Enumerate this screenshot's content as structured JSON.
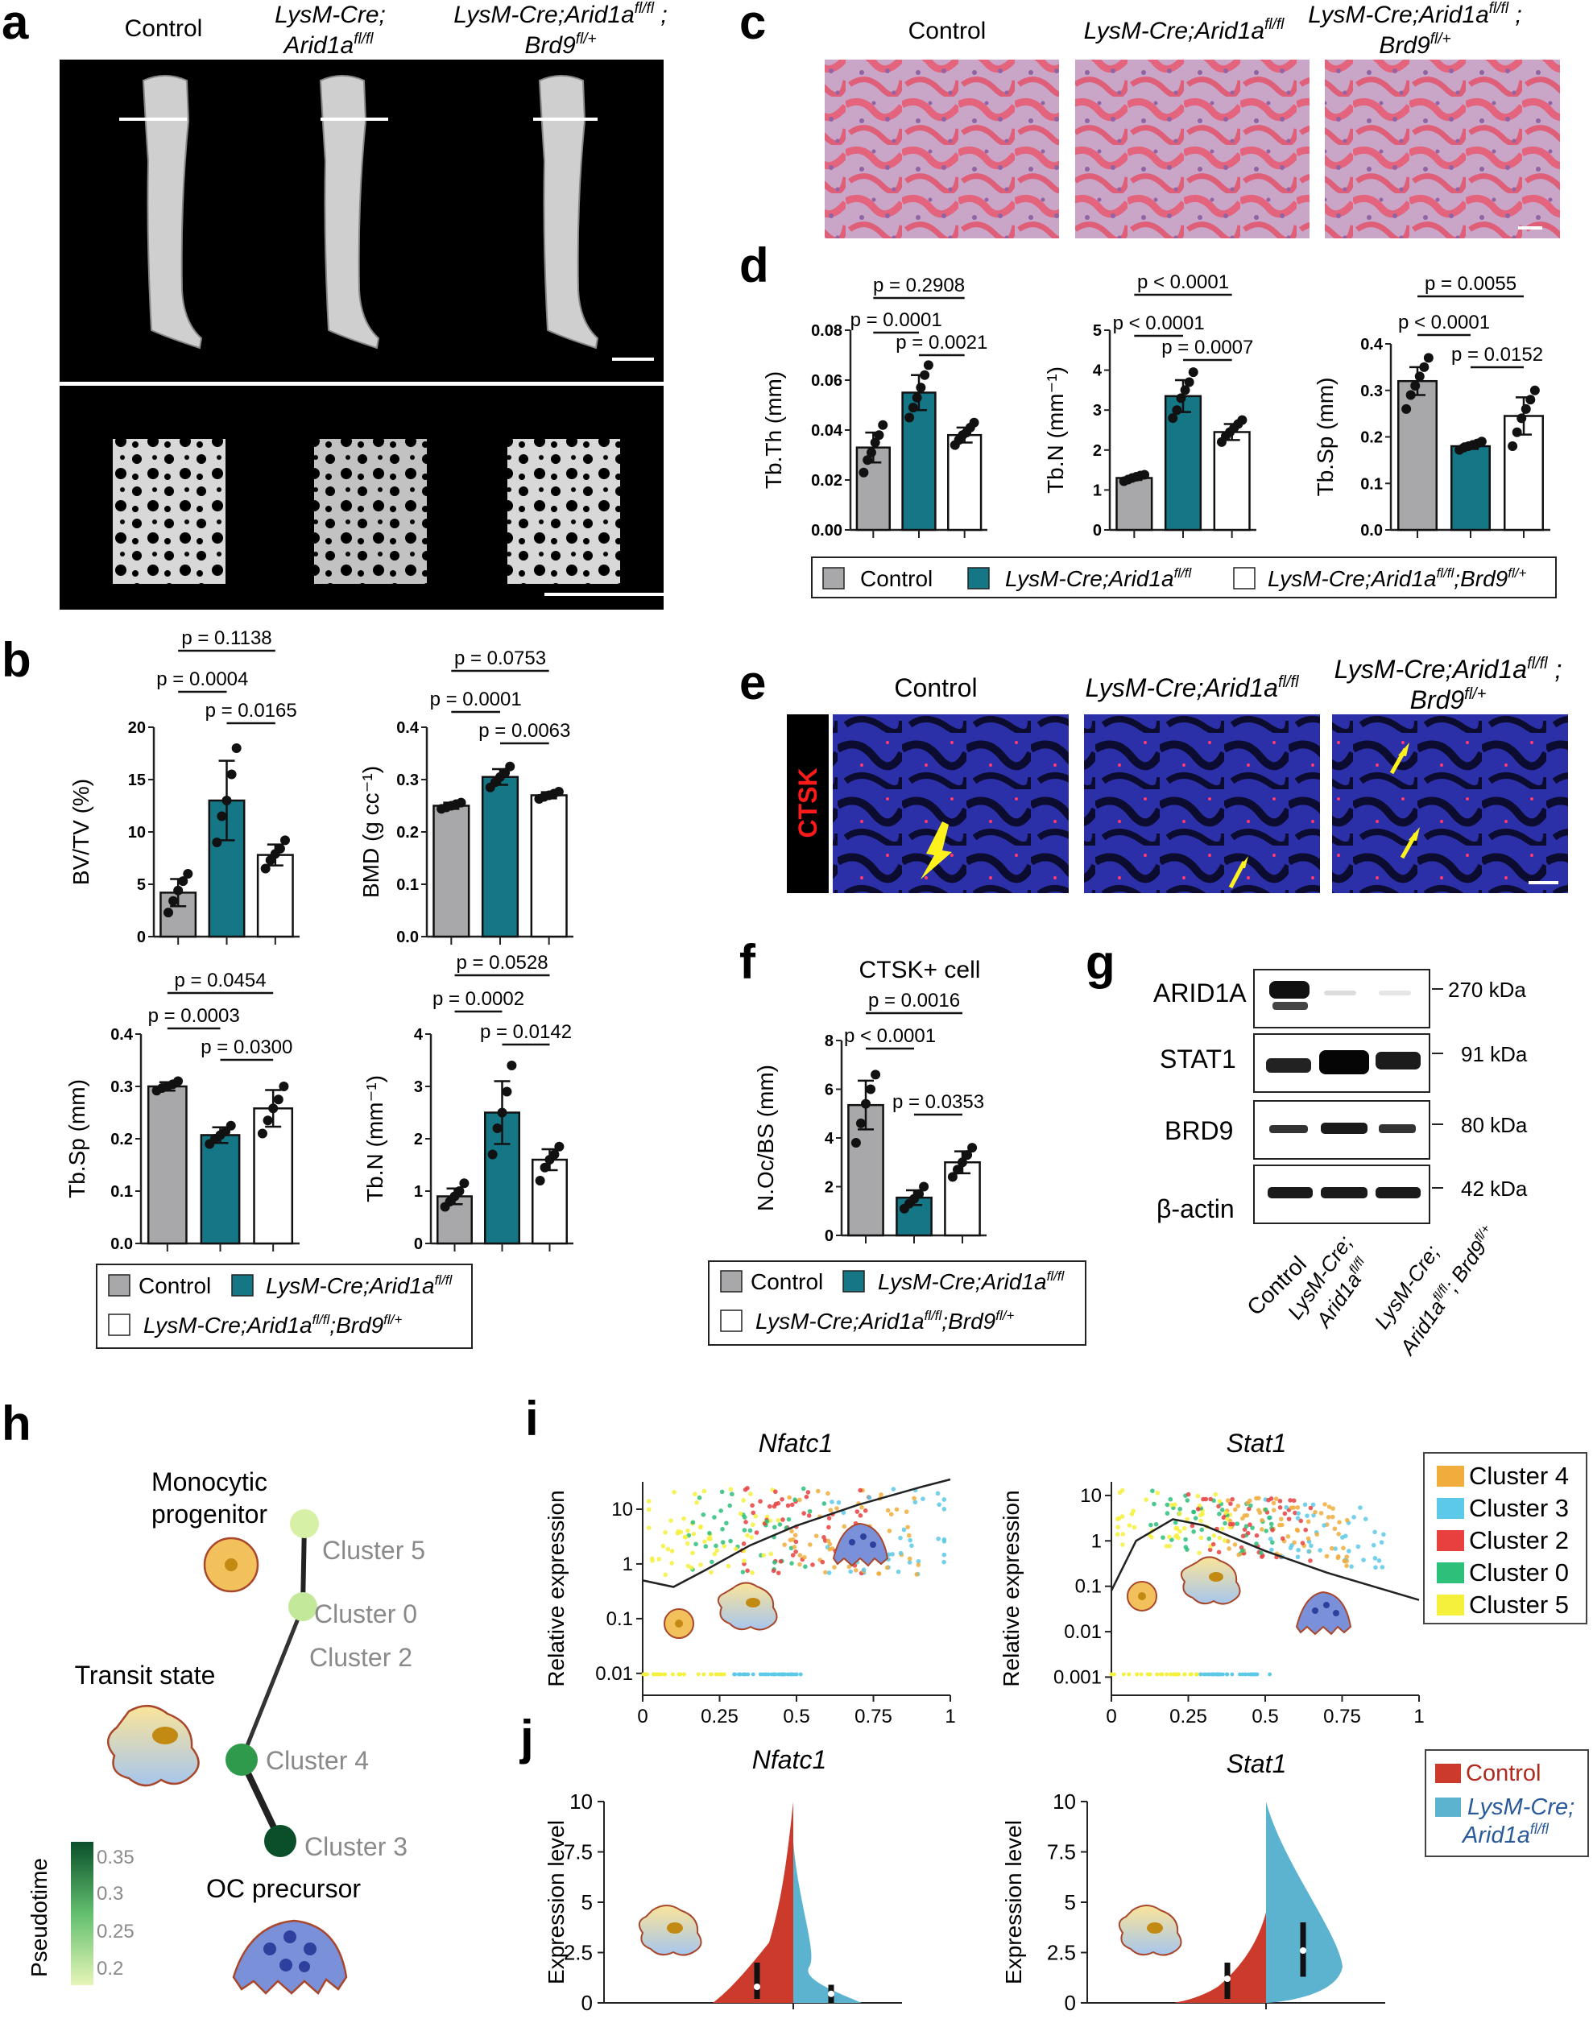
{
  "panel_letters": {
    "a": "a",
    "b": "b",
    "c": "c",
    "d": "d",
    "e": "e",
    "f": "f",
    "g": "g",
    "h": "h",
    "i": "i",
    "j": "j"
  },
  "genotype_labels": {
    "control": "Control",
    "lysm_line1": "LysM-Cre;",
    "lysm_line2": "Arid1a",
    "lysm_sup": "fl/fl",
    "dko_line1": "LysM-Cre;Arid1a",
    "dko_sup1": "fl/fl",
    "dko_semicolon": " ;",
    "dko_line2": "Brd9",
    "dko_sup2": "fl/+",
    "lysm_single": "LysM-Cre;Arid1a"
  },
  "legend": {
    "control": "Control",
    "lysm": "LysM-Cre;Arid1a",
    "lysm_sup": "fl/fl",
    "dko": "LysM-Cre;Arid1a",
    "dko_mid": ";Brd9",
    "dko_sup1": "fl/fl",
    "dko_sup2": "fl/+"
  },
  "colors": {
    "control": "#a8a8ab",
    "lysm": "#157686",
    "dko": "#ffffff",
    "nfatc1_line": "#222222",
    "pseudotime_low": "#e6f5b8",
    "pseudotime_high": "#0a4f2a",
    "violin_control": "#cc3a2c",
    "violin_lysm": "#5cb3cf"
  },
  "panel_e_stain": "CTSK",
  "chart_data": [
    {
      "id": "b1",
      "type": "bar",
      "ylabel": "BV/TV  (%)",
      "ylim": [
        0,
        20
      ],
      "yticks": [
        "0",
        "5",
        "10",
        "15",
        "20"
      ],
      "categories": [
        "Control",
        "LysM-Cre;Arid1a fl/fl",
        "LysM-Cre;Arid1a fl/fl;Brd9 fl/+"
      ],
      "values": [
        4.2,
        13.0,
        7.8
      ],
      "errors": [
        1.3,
        3.8,
        1.0
      ],
      "points": [
        [
          2.3,
          3.4,
          4.4,
          5.3,
          6.0
        ],
        [
          9.0,
          11.5,
          13.0,
          15.5,
          18.0
        ],
        [
          6.5,
          7.3,
          7.9,
          8.4,
          9.2
        ]
      ],
      "pvalues": [
        {
          "label": "p = 0.1138",
          "from": 0,
          "to": 2
        },
        {
          "label": "p = 0.0004",
          "from": 0,
          "to": 1
        },
        {
          "label": "p = 0.0165",
          "from": 1,
          "to": 2
        }
      ]
    },
    {
      "id": "b2",
      "type": "bar",
      "ylabel": "BMD (g cc⁻¹)",
      "ylim": [
        0,
        0.4
      ],
      "yticks": [
        "0.0",
        "0.1",
        "0.2",
        "0.3",
        "0.4"
      ],
      "categories": [
        "Control",
        "LysM-Cre;Arid1a fl/fl",
        "LysM-Cre;Arid1a fl/fl;Brd9 fl/+"
      ],
      "values": [
        0.25,
        0.305,
        0.27
      ],
      "errors": [
        0.006,
        0.015,
        0.006
      ],
      "points": [
        [
          0.244,
          0.247,
          0.25,
          0.253,
          0.256
        ],
        [
          0.285,
          0.295,
          0.305,
          0.313,
          0.325
        ],
        [
          0.263,
          0.267,
          0.27,
          0.273,
          0.277
        ]
      ],
      "pvalues": [
        {
          "label": "p = 0.0753",
          "from": 0,
          "to": 2
        },
        {
          "label": "p = 0.0001",
          "from": 0,
          "to": 1
        },
        {
          "label": "p = 0.0063",
          "from": 1,
          "to": 2
        }
      ]
    },
    {
      "id": "b3",
      "type": "bar",
      "ylabel": "Tb.Sp (mm)",
      "ylim": [
        0,
        0.4
      ],
      "yticks": [
        "0.0",
        "0.1",
        "0.2",
        "0.3",
        "0.4"
      ],
      "categories": [
        "Control",
        "LysM-Cre;Arid1a fl/fl",
        "LysM-Cre;Arid1a fl/fl;Brd9 fl/+"
      ],
      "values": [
        0.3,
        0.207,
        0.258
      ],
      "errors": [
        0.008,
        0.015,
        0.035
      ],
      "points": [
        [
          0.292,
          0.297,
          0.3,
          0.304,
          0.31
        ],
        [
          0.19,
          0.2,
          0.207,
          0.214,
          0.225
        ],
        [
          0.21,
          0.235,
          0.258,
          0.275,
          0.3
        ]
      ],
      "pvalues": [
        {
          "label": "p = 0.0454",
          "from": 0,
          "to": 2
        },
        {
          "label": "p = 0.0003",
          "from": 0,
          "to": 1
        },
        {
          "label": "p = 0.0300",
          "from": 1,
          "to": 2
        }
      ]
    },
    {
      "id": "b4",
      "type": "bar",
      "ylabel": "Tb.N (mm⁻¹)",
      "ylim": [
        0,
        4
      ],
      "yticks": [
        "0",
        "1",
        "2",
        "3",
        "4"
      ],
      "categories": [
        "Control",
        "LysM-Cre;Arid1a fl/fl",
        "LysM-Cre;Arid1a fl/fl;Brd9 fl/+"
      ],
      "values": [
        0.9,
        2.5,
        1.6
      ],
      "errors": [
        0.15,
        0.6,
        0.2
      ],
      "points": [
        [
          0.7,
          0.8,
          0.9,
          1.0,
          1.15
        ],
        [
          1.7,
          2.2,
          2.5,
          2.9,
          3.4
        ],
        [
          1.2,
          1.45,
          1.6,
          1.7,
          1.85
        ]
      ],
      "pvalues": [
        {
          "label": "p = 0.0528",
          "from": 0,
          "to": 2
        },
        {
          "label": "p = 0.0002",
          "from": 0,
          "to": 1
        },
        {
          "label": "p = 0.0142",
          "from": 1,
          "to": 2
        }
      ]
    },
    {
      "id": "d1",
      "type": "bar",
      "ylabel": "Tb.Th (mm)",
      "ylim": [
        0,
        0.08
      ],
      "yticks": [
        "0.00",
        "0.02",
        "0.04",
        "0.06",
        "0.08"
      ],
      "categories": [
        "Control",
        "LysM-Cre;Arid1a fl/fl",
        "LysM-Cre;Arid1a fl/fl;Brd9 fl/+"
      ],
      "values": [
        0.033,
        0.055,
        0.038
      ],
      "errors": [
        0.006,
        0.007,
        0.003
      ],
      "points": [
        [
          0.023,
          0.028,
          0.031,
          0.035,
          0.038,
          0.042
        ],
        [
          0.045,
          0.049,
          0.053,
          0.057,
          0.062,
          0.066
        ],
        [
          0.034,
          0.036,
          0.038,
          0.039,
          0.041,
          0.043
        ]
      ],
      "pvalues": [
        {
          "label": "p = 0.2908",
          "from": 0,
          "to": 2
        },
        {
          "label": "p = 0.0001",
          "from": 0,
          "to": 1
        },
        {
          "label": "p = 0.0021",
          "from": 1,
          "to": 2
        }
      ]
    },
    {
      "id": "d2",
      "type": "bar",
      "ylabel": "Tb.N (mm⁻¹)",
      "ylim": [
        0,
        5
      ],
      "yticks": [
        "0",
        "1",
        "2",
        "3",
        "4",
        "5"
      ],
      "categories": [
        "Control",
        "LysM-Cre;Arid1a fl/fl",
        "LysM-Cre;Arid1a fl/fl;Brd9 fl/+"
      ],
      "values": [
        1.3,
        3.35,
        2.45
      ],
      "errors": [
        0.05,
        0.4,
        0.2
      ],
      "points": [
        [
          1.22,
          1.26,
          1.3,
          1.33,
          1.36,
          1.38
        ],
        [
          2.8,
          3.0,
          3.3,
          3.5,
          3.7,
          3.95
        ],
        [
          2.2,
          2.35,
          2.45,
          2.55,
          2.65,
          2.75
        ]
      ],
      "pvalues": [
        {
          "label": "p < 0.0001",
          "from": 0,
          "to": 2
        },
        {
          "label": "p < 0.0001",
          "from": 0,
          "to": 1
        },
        {
          "label": "p = 0.0007",
          "from": 1,
          "to": 2
        }
      ]
    },
    {
      "id": "d3",
      "type": "bar",
      "ylabel": "Tb.Sp (mm)",
      "ylim": [
        0,
        0.4
      ],
      "yticks": [
        "0.0",
        "0.1",
        "0.2",
        "0.3",
        "0.4"
      ],
      "categories": [
        "Control",
        "LysM-Cre;Arid1a fl/fl",
        "LysM-Cre;Arid1a fl/fl;Brd9 fl/+"
      ],
      "values": [
        0.32,
        0.18,
        0.245
      ],
      "errors": [
        0.03,
        0.006,
        0.04
      ],
      "points": [
        [
          0.26,
          0.29,
          0.31,
          0.33,
          0.35,
          0.37
        ],
        [
          0.172,
          0.177,
          0.18,
          0.183,
          0.186,
          0.19
        ],
        [
          0.18,
          0.21,
          0.24,
          0.26,
          0.28,
          0.3
        ]
      ],
      "pvalues": [
        {
          "label": "p = 0.0055",
          "from": 0,
          "to": 2
        },
        {
          "label": "p < 0.0001",
          "from": 0,
          "to": 1
        },
        {
          "label": "p = 0.0152",
          "from": 1,
          "to": 2
        }
      ]
    },
    {
      "id": "f1",
      "type": "bar",
      "title": "CTSK+ cell",
      "ylabel": "N.Oc/BS (mm)",
      "ylim": [
        0,
        8
      ],
      "yticks": [
        "0",
        "2",
        "4",
        "6",
        "8"
      ],
      "categories": [
        "Control",
        "LysM-Cre;Arid1a fl/fl",
        "LysM-Cre;Arid1a fl/fl;Brd9 fl/+"
      ],
      "values": [
        5.35,
        1.55,
        3.0
      ],
      "errors": [
        1.0,
        0.3,
        0.45
      ],
      "points": [
        [
          3.8,
          4.6,
          5.4,
          6.0,
          6.6
        ],
        [
          1.1,
          1.3,
          1.5,
          1.7,
          2.0
        ],
        [
          2.4,
          2.7,
          3.0,
          3.3,
          3.6
        ]
      ],
      "pvalues": [
        {
          "label": "p = 0.0016",
          "from": 0,
          "to": 2
        },
        {
          "label": "p < 0.0001",
          "from": 0,
          "to": 1
        },
        {
          "label": "p = 0.0353",
          "from": 1,
          "to": 2
        }
      ]
    },
    {
      "id": "i1",
      "type": "scatter",
      "title": "Nfatc1",
      "ylabel": "Relative expression",
      "xlim": [
        0,
        1
      ],
      "yscale": "log",
      "xticks": [
        "0",
        "0.25",
        "0.5",
        "0.75",
        "1"
      ],
      "yticks": [
        "0.01",
        "0.1",
        "1",
        "10"
      ],
      "trend": [
        [
          0,
          0.5
        ],
        [
          0.1,
          0.38
        ],
        [
          0.2,
          0.75
        ],
        [
          0.35,
          2.2
        ],
        [
          0.5,
          5
        ],
        [
          0.7,
          12
        ],
        [
          0.9,
          25
        ],
        [
          1.0,
          35
        ]
      ]
    },
    {
      "id": "i2",
      "type": "scatter",
      "title": "Stat1",
      "ylabel": "Relative expression",
      "xlim": [
        0,
        1
      ],
      "yscale": "log",
      "xticks": [
        "0",
        "0.25",
        "0.5",
        "0.75",
        "1"
      ],
      "yticks": [
        "0.001",
        "0.01",
        "0.1",
        "1",
        "10"
      ],
      "trend": [
        [
          0,
          0.08
        ],
        [
          0.08,
          1.0
        ],
        [
          0.2,
          3.0
        ],
        [
          0.3,
          2.2
        ],
        [
          0.5,
          0.6
        ],
        [
          0.7,
          0.2
        ],
        [
          1.0,
          0.05
        ]
      ]
    },
    {
      "id": "j1",
      "type": "area",
      "title": "Nfatc1",
      "ylabel": "Expression level",
      "ylim": [
        0,
        10
      ],
      "yticks": [
        "0",
        "2.5",
        "5",
        "7.5",
        "10"
      ]
    },
    {
      "id": "j2",
      "type": "area",
      "title": "Stat1",
      "ylabel": "Expression level",
      "ylim": [
        0,
        10
      ],
      "yticks": [
        "0",
        "2.5",
        "5",
        "7.5",
        "10"
      ]
    }
  ],
  "western": {
    "rows": [
      {
        "name": "ARID1A",
        "size": "270 kDa"
      },
      {
        "name": "STAT1",
        "size": "91 kDa"
      },
      {
        "name": "BRD9",
        "size": "80 kDa"
      },
      {
        "name": "β-actin",
        "size": "42 kDa"
      }
    ],
    "lane_labels": {
      "l1": "Control",
      "l2a": "LysM-Cre;",
      "l2b": "Arid1a",
      "l2sup": "fl/fl",
      "l3a": "LysM-Cre;",
      "l3b": "Arid1a",
      "l3sup": "fl/fl",
      "l3c": "; Brd9",
      "l3sup2": "fl/+"
    }
  },
  "trajectory": {
    "clusters": [
      "Cluster 5",
      "Cluster 0",
      "Cluster 2",
      "Cluster 4",
      "Cluster 3"
    ],
    "cell_labels": {
      "mono1": "Monocytic",
      "mono2": "progenitor",
      "transit": "Transit state",
      "oc": "OC precursor"
    },
    "colorbar_title": "Pseudotime",
    "colorbar_ticks": [
      "0.35",
      "0.3",
      "0.25",
      "0.2"
    ]
  },
  "cluster_legend": [
    {
      "name": "Cluster 4",
      "color": "#f0ad3c"
    },
    {
      "name": "Cluster 3",
      "color": "#5cc9e8"
    },
    {
      "name": "Cluster 2",
      "color": "#e8403f"
    },
    {
      "name": "Cluster 0",
      "color": "#2cc07a"
    },
    {
      "name": "Cluster 5",
      "color": "#f5f03c"
    }
  ],
  "violin_legend": {
    "control": "Control",
    "lysm1": "LysM-Cre;",
    "lysm2": "Arid1a",
    "lysm_sup": "fl/fl"
  }
}
